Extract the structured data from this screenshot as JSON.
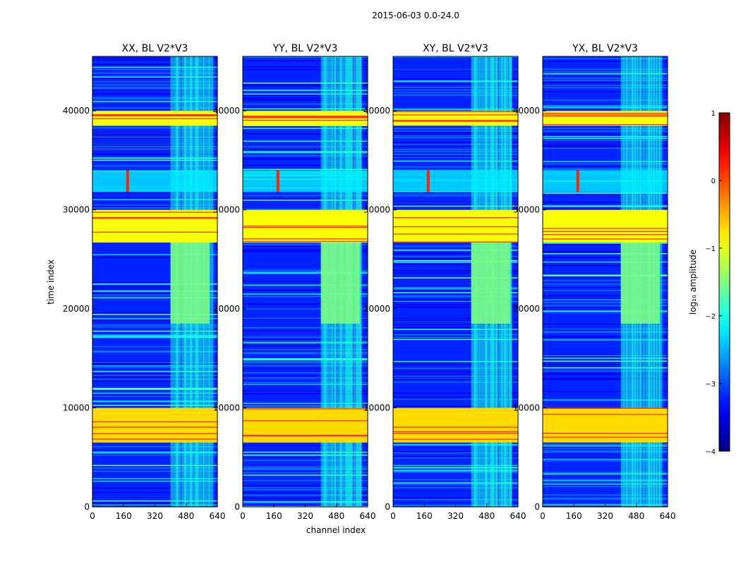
{
  "chart_data": {
    "type": "heatmap",
    "suptitle": "2015-06-03 0.0-24.0",
    "xlabel": "channel index",
    "ylabel": "time index",
    "xlim": [
      0,
      640
    ],
    "ylim": [
      0,
      45500
    ],
    "xticks": [
      0,
      160,
      320,
      480,
      640
    ],
    "yticks": [
      0,
      10000,
      20000,
      30000,
      40000
    ],
    "colorbar": {
      "label": "log₁₀ amplitude",
      "range": [
        -4,
        1
      ],
      "ticks": [
        1,
        0,
        -1,
        -2,
        -3,
        -4
      ],
      "tick_labels": [
        "1",
        "0",
        "−1",
        "−2",
        "−3",
        "−4"
      ]
    },
    "panels": [
      {
        "title": "XX, BL V2*V3",
        "xtick_labels": [
          "0",
          "160",
          "320",
          "480",
          "640"
        ],
        "ytick_labels": [
          "0",
          "10000",
          "20000",
          "30000",
          "40000"
        ]
      },
      {
        "title": "YY, BL V2*V3",
        "xtick_labels": [
          "0",
          "160",
          "320",
          "480",
          "640"
        ],
        "ytick_labels": [
          "0",
          "10000",
          "20000",
          "30000",
          "40000"
        ]
      },
      {
        "title": "XY, BL V2*V3",
        "xtick_labels": [
          "0",
          "160",
          "320",
          "480",
          "640"
        ],
        "ytick_labels": [
          "0",
          "10000",
          "20000",
          "30000",
          "40000"
        ]
      },
      {
        "title": "YX, BL V2*V3",
        "xtick_labels": [
          "0",
          "160",
          "320",
          "480",
          "640"
        ],
        "ytick_labels": [
          "0",
          "10000",
          "20000",
          "30000",
          "40000"
        ]
      }
    ],
    "background_level": -3.2,
    "flagged_time_bands": [
      {
        "t0": 38500,
        "t1": 40000,
        "level": -0.9
      },
      {
        "t0": 26700,
        "t1": 30000,
        "level": -0.9
      },
      {
        "t0": 6500,
        "t1": 10000,
        "level": -0.7
      }
    ],
    "active_time_bands": [
      {
        "t0": 31800,
        "t1": 34000,
        "level": -2.2
      },
      {
        "t0": 18500,
        "t1": 26700,
        "level": -1.5
      }
    ],
    "rfi_channel_range": [
      400,
      600
    ],
    "rfi_level": -2.0,
    "bright_spot": {
      "channel": 180,
      "t0": 31800,
      "t1": 34000,
      "level": 0.2
    }
  }
}
